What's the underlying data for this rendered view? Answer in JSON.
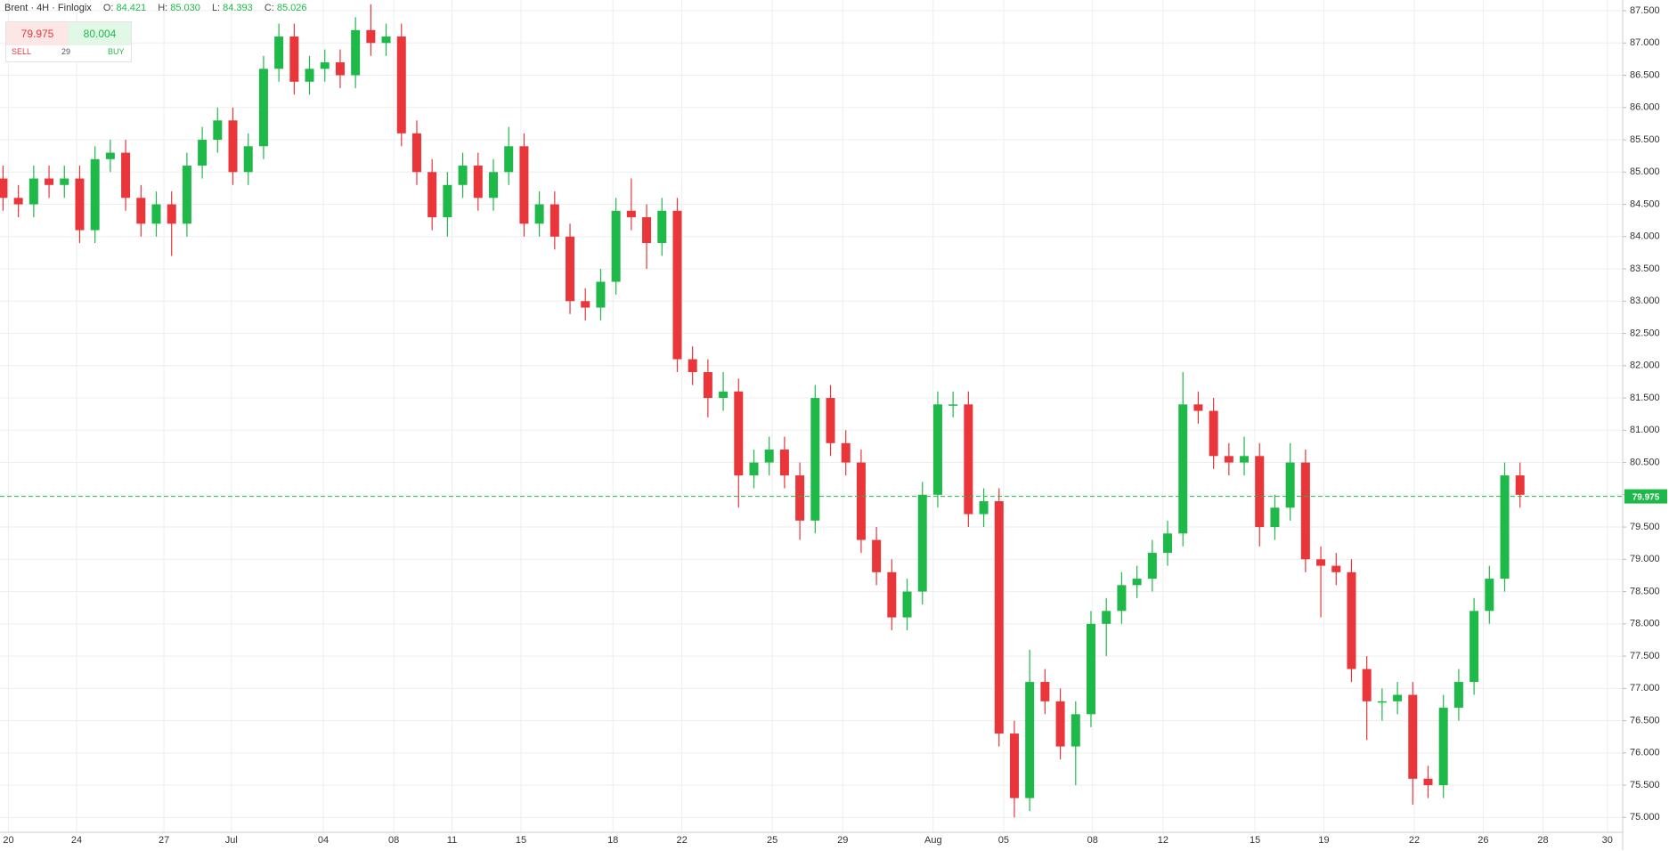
{
  "header": {
    "title": "Brent · 4H · Finlogix",
    "ohlc": [
      {
        "key": "O:",
        "value": "84.421"
      },
      {
        "key": "H:",
        "value": "85.030"
      },
      {
        "key": "L:",
        "value": "84.393"
      },
      {
        "key": "C:",
        "value": "85.026"
      }
    ]
  },
  "trade": {
    "sell_price": "79.975",
    "buy_price": "80.004",
    "sell": "SELL",
    "spread": "29",
    "buy": "BUY"
  },
  "chart_data": {
    "type": "candlestick",
    "up_color": "#1fb94a",
    "down_color": "#e8363a",
    "grid": true,
    "open": [
      84.9,
      84.6,
      84.5,
      84.9,
      84.8,
      84.9,
      84.1,
      85.2,
      85.3,
      84.6,
      84.2,
      84.5,
      84.2,
      85.1,
      85.5,
      85.8,
      85.0,
      85.4,
      86.6,
      87.1,
      86.4,
      86.6,
      86.7,
      86.5,
      87.2,
      87.0,
      87.1,
      85.6,
      85.0,
      84.3,
      84.8,
      85.1,
      84.6,
      85.0,
      85.4,
      84.2,
      84.5,
      84.0,
      83.0,
      82.9,
      83.3,
      84.4,
      84.3,
      83.9,
      84.4,
      82.1,
      81.9,
      81.5,
      81.6,
      80.3,
      80.5,
      80.7,
      80.3,
      79.6,
      81.5,
      80.8,
      80.5,
      79.3,
      78.8,
      78.1,
      78.5,
      80.0,
      81.4,
      81.4,
      79.7,
      79.9,
      76.3,
      75.3,
      77.1,
      76.8,
      76.1,
      76.6,
      78.0,
      78.2,
      78.6,
      78.7,
      79.1,
      79.4,
      81.4,
      81.3,
      80.6,
      80.5,
      80.6,
      79.5,
      79.8,
      80.5,
      79.0,
      78.9,
      78.8,
      77.3,
      76.8,
      76.8,
      76.9,
      75.6,
      75.5,
      76.7,
      77.1,
      78.2,
      78.7,
      80.3
    ],
    "high": [
      85.1,
      84.8,
      85.1,
      85.1,
      85.1,
      85.1,
      85.4,
      85.5,
      85.5,
      84.8,
      84.7,
      84.7,
      85.3,
      85.7,
      86.0,
      86.0,
      85.6,
      86.8,
      87.3,
      87.3,
      86.8,
      86.9,
      86.9,
      87.4,
      87.6,
      87.3,
      87.3,
      85.8,
      85.2,
      85.0,
      85.3,
      85.3,
      85.2,
      85.7,
      85.6,
      84.7,
      84.7,
      84.2,
      83.2,
      83.5,
      84.6,
      84.9,
      84.5,
      84.6,
      84.6,
      82.3,
      82.1,
      81.9,
      81.8,
      80.7,
      80.9,
      80.9,
      80.5,
      81.7,
      81.7,
      81.0,
      80.7,
      79.5,
      79.0,
      78.7,
      80.2,
      81.6,
      81.6,
      81.6,
      80.1,
      80.1,
      76.5,
      77.6,
      77.3,
      77.0,
      76.8,
      78.2,
      78.4,
      78.8,
      78.9,
      79.3,
      79.6,
      81.9,
      81.6,
      81.5,
      80.8,
      80.9,
      80.8,
      80.0,
      80.8,
      80.7,
      79.2,
      79.1,
      79.0,
      77.5,
      77.0,
      77.1,
      77.1,
      75.8,
      76.9,
      77.3,
      78.4,
      78.9,
      80.5,
      80.5
    ],
    "low": [
      84.4,
      84.3,
      84.3,
      84.6,
      84.6,
      83.9,
      83.9,
      85.0,
      84.4,
      84.0,
      84.0,
      83.7,
      84.0,
      84.9,
      85.3,
      84.8,
      84.8,
      85.2,
      86.4,
      86.2,
      86.2,
      86.4,
      86.3,
      86.3,
      86.8,
      86.8,
      85.4,
      84.8,
      84.1,
      84.0,
      84.6,
      84.4,
      84.4,
      84.8,
      84.0,
      84.0,
      83.8,
      82.8,
      82.7,
      82.7,
      83.1,
      84.1,
      83.5,
      83.7,
      81.9,
      81.7,
      81.2,
      81.3,
      79.8,
      80.1,
      80.3,
      80.1,
      79.3,
      79.4,
      80.6,
      80.3,
      79.1,
      78.6,
      77.9,
      77.9,
      78.3,
      79.8,
      81.2,
      79.5,
      79.5,
      76.1,
      75.0,
      75.1,
      76.6,
      75.9,
      75.5,
      76.4,
      77.5,
      78.0,
      78.4,
      78.5,
      78.9,
      79.2,
      81.1,
      80.4,
      80.3,
      80.3,
      79.2,
      79.3,
      79.6,
      78.8,
      78.1,
      78.6,
      77.1,
      76.2,
      76.5,
      76.6,
      75.2,
      75.3,
      75.3,
      76.5,
      76.9,
      78.0,
      78.5,
      79.8
    ],
    "close": [
      84.6,
      84.5,
      84.9,
      84.8,
      84.9,
      84.1,
      85.2,
      85.3,
      84.6,
      84.2,
      84.5,
      84.2,
      85.1,
      85.5,
      85.8,
      85.0,
      85.4,
      86.6,
      87.1,
      86.4,
      86.6,
      86.7,
      86.5,
      87.2,
      87.0,
      87.1,
      85.6,
      85.0,
      84.3,
      84.8,
      85.1,
      84.6,
      85.0,
      85.4,
      84.2,
      84.5,
      84.0,
      83.0,
      82.9,
      83.3,
      84.4,
      84.3,
      83.9,
      84.4,
      82.1,
      81.9,
      81.5,
      81.6,
      80.3,
      80.5,
      80.7,
      80.3,
      79.6,
      81.5,
      80.8,
      80.5,
      79.3,
      78.8,
      78.1,
      78.5,
      80.0,
      81.4,
      81.4,
      79.7,
      79.9,
      76.3,
      75.3,
      77.1,
      76.8,
      76.1,
      76.6,
      78.0,
      78.2,
      78.6,
      78.7,
      79.1,
      79.4,
      81.4,
      81.3,
      80.6,
      80.5,
      80.6,
      79.5,
      79.8,
      80.5,
      79.0,
      78.9,
      78.8,
      77.3,
      76.8,
      76.8,
      76.9,
      75.6,
      75.5,
      76.7,
      77.1,
      78.2,
      78.7,
      80.3,
      80.0
    ],
    "xlim": [
      -0.2,
      105.7
    ],
    "xticks": [
      {
        "value": 0.35,
        "label": "20"
      },
      {
        "value": 4.8,
        "label": "24"
      },
      {
        "value": 10.5,
        "label": "27"
      },
      {
        "value": 14.9,
        "label": "Jul"
      },
      {
        "value": 20.9,
        "label": "04"
      },
      {
        "value": 25.5,
        "label": "08"
      },
      {
        "value": 29.3,
        "label": "11"
      },
      {
        "value": 33.8,
        "label": "15"
      },
      {
        "value": 39.8,
        "label": "18"
      },
      {
        "value": 44.3,
        "label": "22"
      },
      {
        "value": 50.2,
        "label": "25"
      },
      {
        "value": 54.8,
        "label": "29"
      },
      {
        "value": 60.7,
        "label": "Aug"
      },
      {
        "value": 65.3,
        "label": "05"
      },
      {
        "value": 71.1,
        "label": "08"
      },
      {
        "value": 75.7,
        "label": "12"
      },
      {
        "value": 81.7,
        "label": "15"
      },
      {
        "value": 86.2,
        "label": "19"
      },
      {
        "value": 92.1,
        "label": "22"
      },
      {
        "value": 96.6,
        "label": "26"
      },
      {
        "value": 100.5,
        "label": "28"
      },
      {
        "value": 104.7,
        "label": "30"
      }
    ],
    "ylim": [
      74.77,
      87.666
    ],
    "yticks": [
      {
        "value": 87.5,
        "label": "87.500"
      },
      {
        "value": 87,
        "label": "87.000"
      },
      {
        "value": 86.5,
        "label": "86.500"
      },
      {
        "value": 86,
        "label": "86.000"
      },
      {
        "value": 85.5,
        "label": "85.500"
      },
      {
        "value": 85,
        "label": "85.000"
      },
      {
        "value": 84.5,
        "label": "84.500"
      },
      {
        "value": 84,
        "label": "84.000"
      },
      {
        "value": 83.5,
        "label": "83.500"
      },
      {
        "value": 83,
        "label": "83.000"
      },
      {
        "value": 82.5,
        "label": "82.500"
      },
      {
        "value": 82,
        "label": "82.000"
      },
      {
        "value": 81.5,
        "label": "81.500"
      },
      {
        "value": 81,
        "label": "81.000"
      },
      {
        "value": 80.5,
        "label": "80.500"
      },
      {
        "value": 80,
        "label": "80.000"
      },
      {
        "value": 79.5,
        "label": "79.500"
      },
      {
        "value": 79,
        "label": "79.000"
      },
      {
        "value": 78.5,
        "label": "78.500"
      },
      {
        "value": 78,
        "label": "78.000"
      },
      {
        "value": 77.5,
        "label": "77.500"
      },
      {
        "value": 77,
        "label": "77.000"
      },
      {
        "value": 76.5,
        "label": "76.500"
      },
      {
        "value": 76,
        "label": "76.000"
      },
      {
        "value": 75.5,
        "label": "75.500"
      },
      {
        "value": 75,
        "label": "75.000"
      }
    ],
    "last_price": 79.975
  }
}
